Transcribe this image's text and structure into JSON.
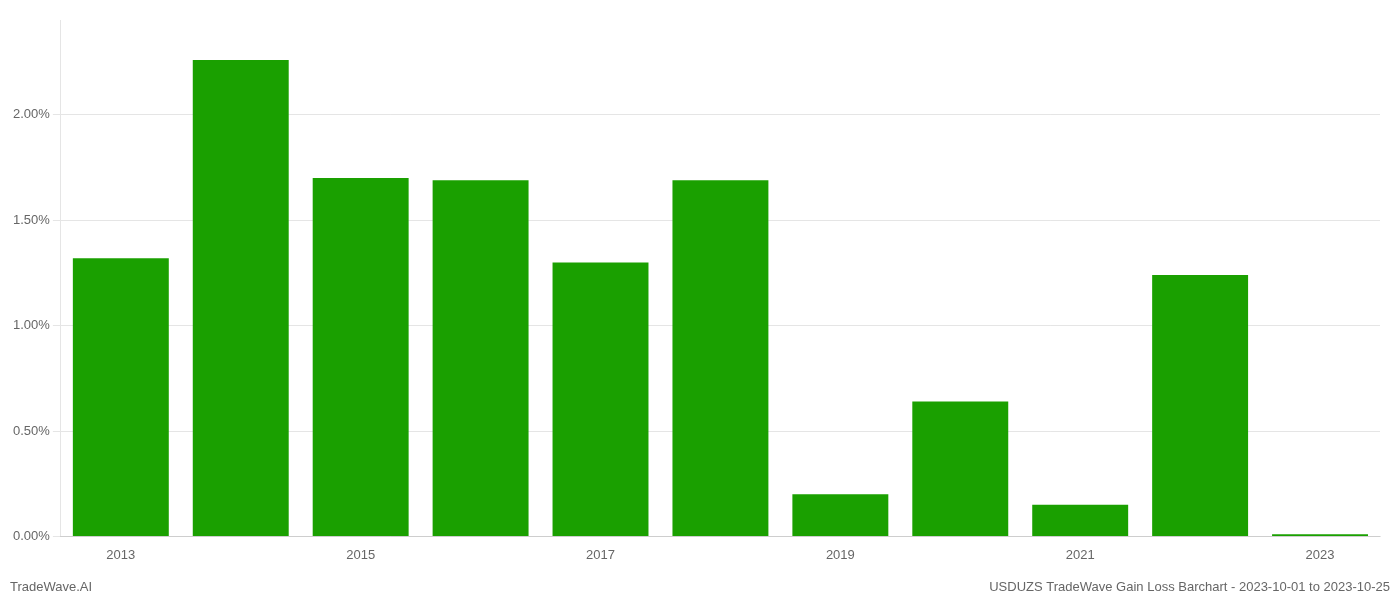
{
  "chart_data": {
    "type": "bar",
    "categories": [
      "2013",
      null,
      "2015",
      null,
      "2017",
      null,
      "2019",
      null,
      "2021",
      null,
      "2023"
    ],
    "values": [
      0.0132,
      0.0226,
      0.017,
      0.0169,
      0.013,
      0.0169,
      0.002,
      0.0064,
      0.0015,
      0.0124,
      0.0001
    ],
    "color": "#1aa000",
    "ylim": [
      0,
      0.0245
    ],
    "yticks": [
      {
        "value": 0.0,
        "label": "0.00%"
      },
      {
        "value": 0.005,
        "label": "0.50%"
      },
      {
        "value": 0.01,
        "label": "1.00%"
      },
      {
        "value": 0.015,
        "label": "1.50%"
      },
      {
        "value": 0.02,
        "label": "2.00%"
      }
    ],
    "grid": true,
    "annotations": [
      "TradeWave.AI",
      "USDUZS TradeWave Gain Loss Barchart - 2023-10-01 to 2023-10-25"
    ]
  }
}
